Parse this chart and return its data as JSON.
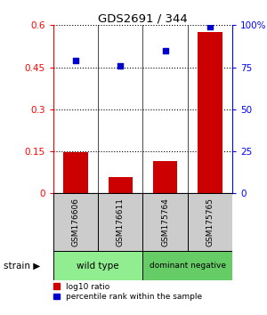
{
  "title": "GDS2691 / 344",
  "samples": [
    "GSM176606",
    "GSM176611",
    "GSM175764",
    "GSM175765"
  ],
  "log10_ratio": [
    0.148,
    0.058,
    0.115,
    0.575
  ],
  "percentile_rank": [
    79,
    76,
    85,
    99
  ],
  "groups": [
    {
      "label": "wild type",
      "color": "#90EE90",
      "samples": [
        0,
        1
      ]
    },
    {
      "label": "dominant negative",
      "color": "#66CC66",
      "samples": [
        2,
        3
      ]
    }
  ],
  "bar_color": "#CC0000",
  "dot_color": "#0000CC",
  "ylim_left": [
    0,
    0.6
  ],
  "ylim_right": [
    0,
    100
  ],
  "yticks_left": [
    0,
    0.15,
    0.3,
    0.45,
    0.6
  ],
  "yticks_right": [
    0,
    25,
    50,
    75,
    100
  ],
  "ytick_labels_left": [
    "0",
    "0.15",
    "0.3",
    "0.45",
    "0.6"
  ],
  "ytick_labels_right": [
    "0",
    "25",
    "50",
    "75",
    "100%"
  ],
  "legend_bar_label": "log10 ratio",
  "legend_dot_label": "percentile rank within the sample",
  "strain_label": "strain"
}
